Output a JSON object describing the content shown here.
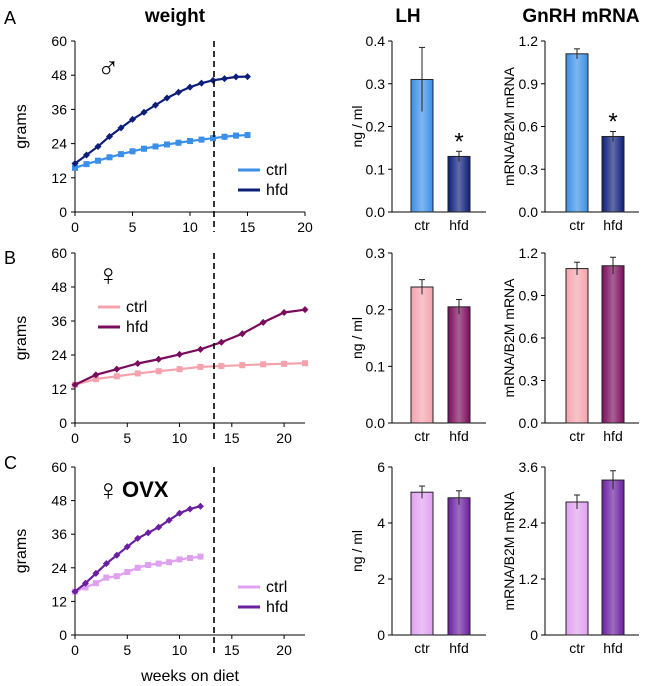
{
  "headers": {
    "weight": "weight",
    "lh": "LH",
    "gnrh": "GnRH mRNA"
  },
  "xlabel": "weeks on diet",
  "colors": {
    "male_ctrl": "#3a8fe8",
    "male_hfd": "#0d1e7a",
    "female_ctrl": "#f4a3ad",
    "female_hfd": "#7a0c5c",
    "ovx_ctrl": "#e0a0f0",
    "ovx_hfd": "#6a1ea0",
    "male_symbol": "#2a5f8f",
    "female_symbol": "#8a2aa8",
    "star": "#1f2a8a"
  },
  "chart_data": [
    {
      "id": "A-weight",
      "panel": "A",
      "type": "line",
      "symbol": "♂",
      "ylabel": "grams",
      "xlim": [
        0,
        20
      ],
      "ylim": [
        0,
        60
      ],
      "xticks": [
        "0",
        "5",
        "10",
        "15",
        "20"
      ],
      "yticks": [
        "0",
        "12",
        "24",
        "36",
        "48",
        "60"
      ],
      "legend": [
        "ctrl",
        "hfd"
      ],
      "series": [
        {
          "name": "ctrl",
          "color_key": "male_ctrl",
          "marker": "square",
          "x": [
            0,
            1,
            2,
            3,
            4,
            5,
            6,
            7,
            8,
            9,
            10,
            11,
            12,
            13,
            14,
            15
          ],
          "y": [
            15.5,
            16.8,
            18.0,
            19.2,
            20.3,
            21.3,
            22.2,
            23.0,
            23.7,
            24.3,
            24.9,
            25.4,
            25.9,
            26.4,
            26.8,
            27.0
          ]
        },
        {
          "name": "hfd",
          "color_key": "male_hfd",
          "marker": "diamond",
          "x": [
            0,
            1,
            2,
            3,
            4,
            5,
            6,
            7,
            8,
            9,
            10,
            11,
            12,
            13,
            14,
            15
          ],
          "y": [
            17.0,
            20.0,
            23.0,
            26.5,
            29.5,
            32.5,
            35.0,
            37.5,
            40.0,
            42.0,
            43.8,
            45.2,
            46.2,
            46.8,
            47.4,
            47.5
          ]
        }
      ]
    },
    {
      "id": "A-lh",
      "panel": "A",
      "type": "bar",
      "ylabel": "ng / ml",
      "ylim": [
        0,
        0.4
      ],
      "yticks": [
        "0.0",
        "0.1",
        "0.2",
        "0.3",
        "0.4"
      ],
      "categories": [
        "ctr",
        "hfd"
      ],
      "values": [
        0.31,
        0.13
      ],
      "errors": [
        0.075,
        0.012
      ],
      "color_keys": [
        "male_ctrl",
        "male_hfd"
      ],
      "star": [
        false,
        true
      ]
    },
    {
      "id": "A-gnrh",
      "panel": "A",
      "type": "bar",
      "ylabel": "mRNA/B2M mRNA",
      "ylim": [
        0,
        1.2
      ],
      "yticks": [
        "0.0",
        "0.3",
        "0.6",
        "0.9",
        "1.2"
      ],
      "categories": [
        "ctr",
        "hfd"
      ],
      "values": [
        1.11,
        0.53
      ],
      "errors": [
        0.035,
        0.035
      ],
      "color_keys": [
        "male_ctrl",
        "male_hfd"
      ],
      "star": [
        false,
        true
      ]
    },
    {
      "id": "B-weight",
      "panel": "B",
      "type": "line",
      "symbol": "♀",
      "ylabel": "grams",
      "xlim": [
        0,
        22
      ],
      "ylim": [
        0,
        60
      ],
      "xticks": [
        "0",
        "5",
        "10",
        "15",
        "20"
      ],
      "yticks": [
        "0",
        "12",
        "24",
        "36",
        "48",
        "60"
      ],
      "legend": [
        "ctrl",
        "hfd"
      ],
      "series": [
        {
          "name": "ctrl",
          "color_key": "female_ctrl",
          "marker": "square",
          "x": [
            0,
            2,
            4,
            6,
            8,
            10,
            12,
            14,
            16,
            18,
            20,
            22
          ],
          "y": [
            13.5,
            15.5,
            16.5,
            17.5,
            18.3,
            19.0,
            19.8,
            20.1,
            20.4,
            20.7,
            20.9,
            21.1
          ]
        },
        {
          "name": "hfd",
          "color_key": "female_hfd",
          "marker": "diamond",
          "x": [
            0,
            2,
            4,
            6,
            8,
            10,
            12,
            14,
            16,
            18,
            20,
            22
          ],
          "y": [
            13.5,
            17.0,
            19.0,
            21.0,
            22.5,
            24.2,
            26.0,
            28.5,
            31.5,
            35.5,
            39.0,
            40.0
          ]
        }
      ]
    },
    {
      "id": "B-lh",
      "panel": "B",
      "type": "bar",
      "ylabel": "ng / ml",
      "ylim": [
        0,
        0.3
      ],
      "yticks": [
        "0.0",
        "0.1",
        "0.2",
        "0.3"
      ],
      "categories": [
        "ctr",
        "hfd"
      ],
      "values": [
        0.24,
        0.205
      ],
      "errors": [
        0.013,
        0.013
      ],
      "color_keys": [
        "female_ctrl",
        "female_hfd"
      ],
      "star": [
        false,
        false
      ]
    },
    {
      "id": "B-gnrh",
      "panel": "B",
      "type": "bar",
      "ylabel": "mRNA/B2M mRNA",
      "ylim": [
        0,
        1.2
      ],
      "yticks": [
        "0.0",
        "0.3",
        "0.6",
        "0.9",
        "1.2"
      ],
      "categories": [
        "ctr",
        "hfd"
      ],
      "values": [
        1.09,
        1.11
      ],
      "errors": [
        0.045,
        0.06
      ],
      "color_keys": [
        "female_ctrl",
        "female_hfd"
      ],
      "star": [
        false,
        false
      ]
    },
    {
      "id": "C-weight",
      "panel": "C",
      "type": "line",
      "symbol": "♀",
      "symbol_text": "OVX",
      "ylabel": "grams",
      "xlim": [
        0,
        22
      ],
      "ylim": [
        0,
        60
      ],
      "xticks": [
        "0",
        "5",
        "10",
        "15",
        "20"
      ],
      "yticks": [
        "0",
        "12",
        "24",
        "36",
        "48",
        "60"
      ],
      "legend": [
        "ctrl",
        "hfd"
      ],
      "series": [
        {
          "name": "ctrl",
          "color_key": "ovx_ctrl",
          "marker": "square",
          "x": [
            0,
            1,
            2,
            3,
            4,
            5,
            6,
            7,
            8,
            9,
            10,
            11,
            12
          ],
          "y": [
            15.5,
            17.0,
            18.5,
            20.5,
            21.0,
            22.5,
            24.0,
            25.0,
            25.5,
            26.0,
            27.0,
            27.5,
            28.0
          ]
        },
        {
          "name": "hfd",
          "color_key": "ovx_hfd",
          "marker": "diamond",
          "x": [
            0,
            1,
            2,
            3,
            4,
            5,
            6,
            7,
            8,
            9,
            10,
            11,
            12
          ],
          "y": [
            15.5,
            18.5,
            22.0,
            25.5,
            28.5,
            31.5,
            34.5,
            36.5,
            38.5,
            41.0,
            43.5,
            45.0,
            46.0
          ]
        }
      ]
    },
    {
      "id": "C-lh",
      "panel": "C",
      "type": "bar",
      "ylabel": "ng / ml",
      "ylim": [
        0,
        6
      ],
      "yticks": [
        "0",
        "2",
        "4",
        "6"
      ],
      "categories": [
        "ctr",
        "hfd"
      ],
      "values": [
        5.1,
        4.9
      ],
      "errors": [
        0.22,
        0.25
      ],
      "color_keys": [
        "ovx_ctrl",
        "ovx_hfd"
      ],
      "star": [
        false,
        false
      ]
    },
    {
      "id": "C-gnrh",
      "panel": "C",
      "type": "bar",
      "ylabel": "mRNA/B2M mRNA",
      "ylim": [
        0,
        3.6
      ],
      "yticks": [
        "0",
        "1.2",
        "2.4",
        "3.6"
      ],
      "categories": [
        "ctr",
        "hfd"
      ],
      "values": [
        2.85,
        3.32
      ],
      "errors": [
        0.15,
        0.2
      ],
      "color_keys": [
        "ovx_ctrl",
        "ovx_hfd"
      ],
      "star": [
        false,
        false
      ]
    }
  ]
}
